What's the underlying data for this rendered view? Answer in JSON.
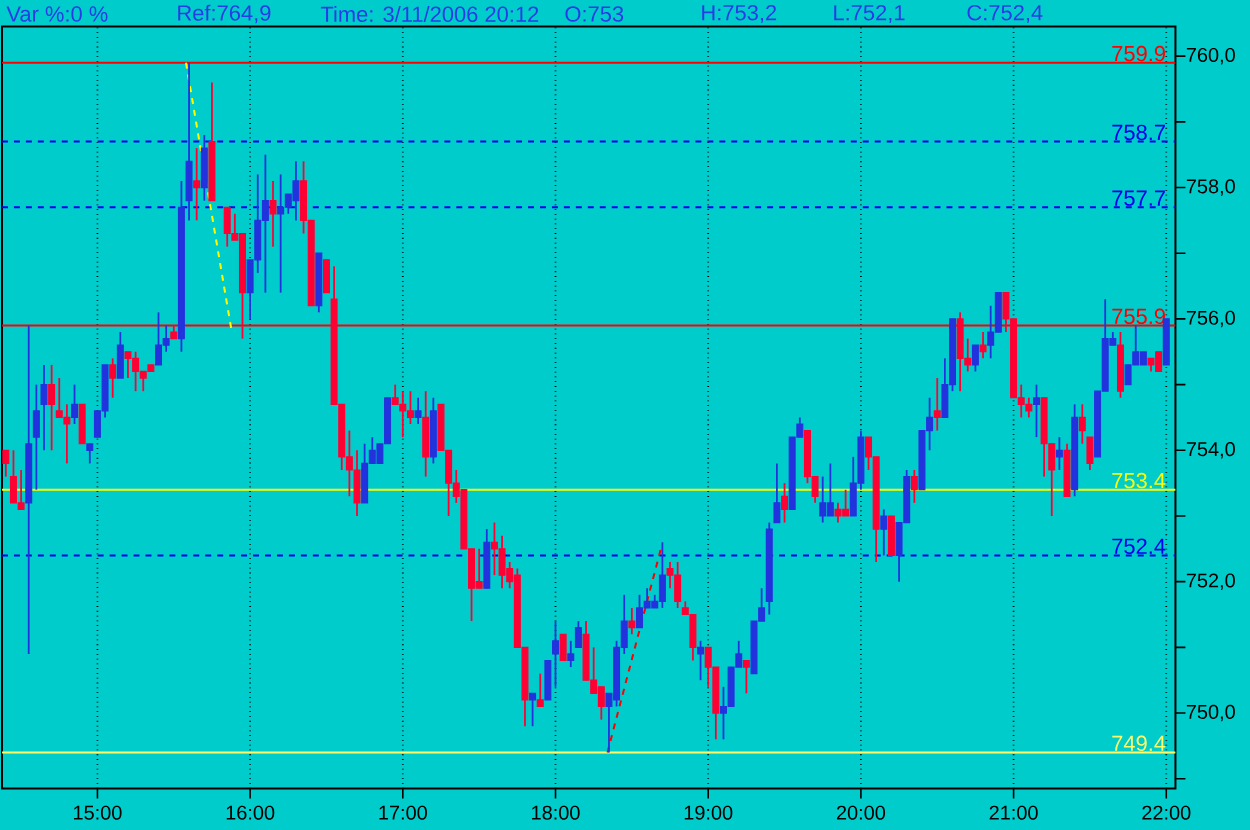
{
  "chart_data": {
    "type": "candlestick",
    "annotations": [
      "Var %:0 %",
      "Ref:764,9",
      "Time: 3/11/2006 20:12",
      "O:753",
      "H:753,2",
      "L:752,1",
      "C:752,4"
    ],
    "x": [
      14.4,
      14.45,
      14.5,
      14.55,
      14.6,
      14.65,
      14.7,
      14.75,
      14.8,
      14.85,
      14.9,
      14.95,
      15,
      15.05,
      15.1,
      15.15,
      15.2,
      15.25,
      15.3,
      15.35,
      15.4,
      15.45,
      15.5,
      15.55,
      15.6,
      15.65,
      15.7,
      15.75,
      15.85,
      15.9,
      15.95,
      16,
      16.05,
      16.1,
      16.15,
      16.2,
      16.25,
      16.3,
      16.35,
      16.4,
      16.45,
      16.5,
      16.55,
      16.6,
      16.65,
      16.7,
      16.75,
      16.8,
      16.85,
      16.9,
      16.95,
      17,
      17.05,
      17.1,
      17.15,
      17.2,
      17.25,
      17.3,
      17.35,
      17.4,
      17.45,
      17.5,
      17.55,
      17.6,
      17.65,
      17.7,
      17.75,
      17.8,
      17.85,
      17.9,
      17.95,
      18,
      18.05,
      18.1,
      18.15,
      18.2,
      18.25,
      18.3,
      18.35,
      18.4,
      18.45,
      18.5,
      18.55,
      18.6,
      18.65,
      18.7,
      18.75,
      18.8,
      18.85,
      18.9,
      18.95,
      19,
      19.05,
      19.1,
      19.15,
      19.2,
      19.25,
      19.3,
      19.35,
      19.4,
      19.45,
      19.5,
      19.55,
      19.6,
      19.65,
      19.7,
      19.75,
      19.8,
      19.85,
      19.9,
      19.95,
      20,
      20.05,
      20.1,
      20.15,
      20.2,
      20.25,
      20.3,
      20.35,
      20.4,
      20.45,
      20.5,
      20.55,
      20.6,
      20.65,
      20.7,
      20.75,
      20.8,
      20.85,
      20.9,
      20.95,
      21,
      21.05,
      21.1,
      21.15,
      21.2,
      21.25,
      21.3,
      21.35,
      21.4,
      21.45,
      21.5,
      21.55,
      21.6,
      21.65,
      21.7,
      21.75,
      21.8,
      21.85,
      21.9,
      21.95,
      22
    ],
    "ohlc": [
      [
        754.0,
        754.0,
        753.6,
        753.8
      ],
      [
        753.6,
        754.0,
        753.2,
        753.2
      ],
      [
        753.2,
        753.7,
        753.1,
        753.1
      ],
      [
        753.2,
        755.9,
        750.9,
        754.1
      ],
      [
        754.2,
        755.0,
        753.4,
        754.6
      ],
      [
        754.7,
        755.3,
        754.0,
        755.0
      ],
      [
        755.0,
        755.3,
        754.0,
        754.7
      ],
      [
        754.6,
        755.1,
        754.5,
        754.5
      ],
      [
        754.5,
        754.7,
        753.8,
        754.4
      ],
      [
        754.5,
        755.0,
        754.4,
        754.7
      ],
      [
        754.7,
        754.7,
        754.1,
        754.1
      ],
      [
        754.0,
        754.1,
        753.8,
        754.1
      ],
      [
        754.2,
        754.6,
        754.2,
        754.6
      ],
      [
        754.6,
        755.3,
        754.5,
        755.3
      ],
      [
        755.3,
        755.4,
        754.8,
        755.1
      ],
      [
        755.1,
        755.8,
        755.1,
        755.6
      ],
      [
        755.5,
        755.5,
        755.1,
        755.4
      ],
      [
        755.4,
        755.5,
        754.9,
        755.2
      ],
      [
        755.2,
        755.2,
        754.9,
        755.1
      ],
      [
        755.3,
        755.3,
        755.2,
        755.2
      ],
      [
        755.3,
        756.1,
        755.3,
        755.6
      ],
      [
        755.6,
        755.9,
        755.5,
        755.7
      ],
      [
        755.8,
        755.9,
        755.7,
        755.7
      ],
      [
        755.7,
        758.1,
        755.5,
        757.7
      ],
      [
        757.8,
        759.9,
        757.5,
        758.4
      ],
      [
        758.1,
        758.6,
        757.5,
        758.0
      ],
      [
        758.0,
        758.8,
        757.8,
        758.6
      ],
      [
        758.7,
        759.6,
        757.8,
        757.8
      ],
      [
        757.7,
        757.7,
        757.1,
        757.3
      ],
      [
        757.3,
        757.6,
        757.2,
        757.2
      ],
      [
        757.3,
        757.3,
        755.7,
        756.4
      ],
      [
        756.4,
        756.9,
        756.0,
        756.9
      ],
      [
        756.9,
        758.2,
        756.7,
        757.5
      ],
      [
        757.5,
        758.5,
        756.4,
        757.8
      ],
      [
        757.8,
        758.1,
        757.1,
        757.6
      ],
      [
        757.6,
        758.2,
        756.4,
        757.7
      ],
      [
        757.7,
        757.9,
        757.6,
        757.9
      ],
      [
        757.8,
        758.4,
        757.5,
        758.1
      ],
      [
        758.1,
        758.4,
        757.3,
        757.5
      ],
      [
        757.5,
        757.5,
        756.2,
        756.2
      ],
      [
        756.2,
        757.0,
        756.1,
        757.0
      ],
      [
        756.9,
        756.9,
        756.4,
        756.4
      ],
      [
        756.3,
        756.8,
        754.7,
        754.7
      ],
      [
        754.7,
        754.7,
        753.7,
        753.9
      ],
      [
        753.9,
        754.3,
        753.3,
        753.7
      ],
      [
        753.7,
        754.0,
        753.0,
        753.2
      ],
      [
        753.2,
        754.1,
        753.2,
        753.8
      ],
      [
        753.8,
        754.2,
        753.8,
        754.0
      ],
      [
        753.8,
        754.1,
        753.8,
        754.1
      ],
      [
        754.1,
        754.8,
        754.1,
        754.8
      ],
      [
        754.8,
        755.0,
        754.7,
        754.7
      ],
      [
        754.7,
        754.9,
        754.2,
        754.6
      ],
      [
        754.6,
        754.9,
        754.4,
        754.5
      ],
      [
        754.5,
        754.8,
        754.4,
        754.6
      ],
      [
        754.5,
        754.9,
        753.6,
        753.9
      ],
      [
        753.9,
        754.8,
        753.8,
        754.6
      ],
      [
        754.7,
        754.7,
        754.0,
        754.0
      ],
      [
        754.0,
        754.0,
        753.0,
        753.5
      ],
      [
        753.5,
        753.7,
        753.2,
        753.3
      ],
      [
        753.4,
        753.4,
        752.5,
        752.5
      ],
      [
        752.5,
        752.5,
        751.4,
        751.9
      ],
      [
        752.0,
        752.5,
        751.9,
        751.9
      ],
      [
        751.9,
        752.8,
        751.9,
        752.6
      ],
      [
        752.6,
        752.9,
        752.1,
        752.5
      ],
      [
        752.5,
        752.7,
        751.9,
        752.1
      ],
      [
        752.2,
        752.3,
        751.9,
        752.0
      ],
      [
        752.1,
        752.2,
        751.0,
        751.0
      ],
      [
        751.0,
        751.0,
        749.8,
        750.2
      ],
      [
        750.2,
        750.3,
        749.8,
        750.3
      ],
      [
        750.2,
        750.6,
        750.1,
        750.1
      ],
      [
        750.2,
        750.8,
        750.2,
        750.8
      ],
      [
        750.9,
        751.4,
        750.4,
        751.1
      ],
      [
        751.2,
        751.2,
        750.8,
        750.8
      ],
      [
        750.8,
        751.1,
        750.7,
        750.9
      ],
      [
        751.0,
        751.4,
        751.0,
        751.3
      ],
      [
        751.2,
        751.4,
        750.5,
        750.5
      ],
      [
        750.5,
        751.0,
        750.3,
        750.3
      ],
      [
        750.4,
        750.4,
        749.9,
        750.1
      ],
      [
        750.1,
        750.3,
        749.4,
        750.3
      ],
      [
        750.2,
        751.1,
        750.1,
        751.0
      ],
      [
        751.0,
        751.8,
        750.9,
        751.4
      ],
      [
        751.4,
        751.6,
        751.2,
        751.3
      ],
      [
        751.3,
        751.8,
        751.3,
        751.6
      ],
      [
        751.6,
        751.9,
        751.6,
        751.7
      ],
      [
        751.6,
        751.8,
        751.6,
        751.7
      ],
      [
        751.7,
        752.6,
        751.6,
        752.1
      ],
      [
        752.2,
        752.3,
        751.9,
        752.1
      ],
      [
        752.1,
        752.3,
        751.6,
        751.7
      ],
      [
        751.6,
        751.7,
        751.5,
        751.5
      ],
      [
        751.5,
        751.5,
        750.8,
        751.0
      ],
      [
        750.9,
        751.1,
        750.5,
        751.0
      ],
      [
        751.0,
        751.0,
        750.4,
        750.7
      ],
      [
        750.7,
        750.7,
        749.6,
        750.0
      ],
      [
        750.0,
        750.4,
        749.6,
        750.1
      ],
      [
        750.1,
        750.7,
        750.1,
        750.7
      ],
      [
        750.7,
        751.1,
        750.7,
        750.9
      ],
      [
        750.8,
        750.8,
        750.3,
        750.7
      ],
      [
        750.6,
        751.4,
        750.6,
        751.4
      ],
      [
        751.4,
        751.9,
        751.4,
        751.6
      ],
      [
        751.7,
        752.9,
        751.5,
        752.8
      ],
      [
        752.9,
        753.8,
        752.9,
        753.2
      ],
      [
        753.3,
        753.5,
        752.9,
        753.1
      ],
      [
        753.1,
        754.2,
        753.1,
        754.2
      ],
      [
        754.2,
        754.5,
        754.2,
        754.4
      ],
      [
        754.3,
        754.3,
        753.5,
        753.6
      ],
      [
        753.6,
        753.6,
        753.2,
        753.3
      ],
      [
        753.0,
        753.6,
        752.9,
        753.2
      ],
      [
        753.0,
        753.8,
        753.0,
        753.2
      ],
      [
        753.1,
        753.2,
        752.9,
        753.0
      ],
      [
        753.1,
        753.4,
        753.0,
        753.0
      ],
      [
        753.0,
        753.9,
        753.0,
        753.5
      ],
      [
        753.5,
        754.3,
        753.4,
        754.2
      ],
      [
        754.2,
        754.2,
        753.7,
        753.9
      ],
      [
        753.9,
        753.9,
        752.3,
        752.8
      ],
      [
        752.8,
        753.1,
        752.4,
        753.0
      ],
      [
        753.0,
        753.0,
        752.4,
        752.4
      ],
      [
        752.4,
        752.9,
        752.0,
        752.9
      ],
      [
        752.9,
        753.7,
        752.9,
        753.6
      ],
      [
        753.6,
        753.7,
        753.2,
        753.4
      ],
      [
        753.4,
        754.3,
        753.4,
        754.3
      ],
      [
        754.3,
        754.8,
        754.0,
        754.5
      ],
      [
        754.6,
        755.1,
        754.3,
        754.5
      ],
      [
        754.5,
        755.4,
        754.5,
        755.0
      ],
      [
        755.0,
        756.0,
        754.9,
        756.0
      ],
      [
        756.0,
        756.1,
        754.9,
        755.4
      ],
      [
        755.4,
        755.7,
        755.2,
        755.3
      ],
      [
        755.3,
        755.6,
        755.2,
        755.6
      ],
      [
        755.6,
        755.8,
        755.4,
        755.5
      ],
      [
        755.6,
        756.2,
        755.4,
        755.8
      ],
      [
        755.8,
        756.4,
        755.8,
        756.4
      ],
      [
        756.4,
        756.4,
        755.8,
        756.0
      ],
      [
        756.0,
        756.0,
        754.8,
        754.8
      ],
      [
        754.8,
        755.0,
        754.5,
        754.7
      ],
      [
        754.7,
        754.8,
        754.5,
        754.6
      ],
      [
        754.7,
        755.0,
        754.2,
        754.8
      ],
      [
        754.8,
        754.8,
        753.6,
        754.1
      ],
      [
        754.1,
        754.1,
        753.0,
        753.7
      ],
      [
        753.9,
        754.2,
        753.7,
        754.0
      ],
      [
        754.0,
        754.1,
        753.3,
        753.3
      ],
      [
        753.4,
        754.7,
        753.3,
        754.5
      ],
      [
        754.5,
        754.7,
        754.1,
        754.3
      ],
      [
        754.2,
        754.2,
        753.7,
        753.8
      ],
      [
        753.9,
        754.9,
        753.9,
        754.9
      ],
      [
        754.9,
        756.3,
        754.9,
        755.7
      ],
      [
        755.6,
        755.8,
        755.6,
        755.7
      ],
      [
        755.6,
        755.8,
        754.8,
        754.9
      ],
      [
        755.0,
        755.3,
        755.0,
        755.3
      ],
      [
        755.3,
        755.9,
        755.3,
        755.5
      ],
      [
        755.3,
        755.5,
        755.3,
        755.5
      ],
      [
        755.4,
        755.4,
        755.2,
        755.3
      ],
      [
        755.5,
        755.5,
        755.2,
        755.2
      ],
      [
        755.3,
        756.0,
        755.3,
        756.0
      ]
    ],
    "colors": [
      "#ff0033",
      "#ff0033",
      "#ff0033",
      "#2233dd",
      "#2233dd",
      "#2233dd",
      "#ff0033",
      "#ff0033",
      "#ff0033",
      "#2233dd",
      "#ff0033",
      "#2233dd",
      "#2233dd",
      "#2233dd",
      "#ff0033",
      "#2233dd",
      "#ff0033",
      "#ff0033",
      "#ff0033",
      "#ff0033",
      "#2233dd",
      "#2233dd",
      "#ff0033",
      "#2233dd",
      "#2233dd",
      "#ff0033",
      "#2233dd",
      "#ff0033",
      "#ff0033",
      "#ff0033",
      "#ff0033",
      "#2233dd",
      "#2233dd",
      "#2233dd",
      "#ff0033",
      "#2233dd",
      "#2233dd",
      "#2233dd",
      "#ff0033",
      "#ff0033",
      "#2233dd",
      "#ff0033",
      "#ff0033",
      "#ff0033",
      "#ff0033",
      "#ff0033",
      "#2233dd",
      "#2233dd",
      "#2233dd",
      "#2233dd",
      "#ff0033",
      "#ff0033",
      "#ff0033",
      "#2233dd",
      "#ff0033",
      "#2233dd",
      "#ff0033",
      "#ff0033",
      "#ff0033",
      "#ff0033",
      "#ff0033",
      "#ff0033",
      "#2233dd",
      "#ff0033",
      "#ff0033",
      "#ff0033",
      "#ff0033",
      "#ff0033",
      "#2233dd",
      "#ff0033",
      "#2233dd",
      "#2233dd",
      "#ff0033",
      "#2233dd",
      "#2233dd",
      "#ff0033",
      "#ff0033",
      "#ff0033",
      "#2233dd",
      "#2233dd",
      "#2233dd",
      "#ff0033",
      "#2233dd",
      "#2233dd",
      "#2233dd",
      "#2233dd",
      "#ff0033",
      "#ff0033",
      "#ff0033",
      "#ff0033",
      "#2233dd",
      "#ff0033",
      "#ff0033",
      "#2233dd",
      "#2233dd",
      "#2233dd",
      "#ff0033",
      "#2233dd",
      "#2233dd",
      "#2233dd",
      "#2233dd",
      "#ff0033",
      "#2233dd",
      "#2233dd",
      "#ff0033",
      "#ff0033",
      "#2233dd",
      "#2233dd",
      "#ff0033",
      "#ff0033",
      "#2233dd",
      "#2233dd",
      "#ff0033",
      "#ff0033",
      "#2233dd",
      "#ff0033",
      "#2233dd",
      "#2233dd",
      "#ff0033",
      "#2233dd",
      "#2233dd",
      "#ff0033",
      "#2233dd",
      "#2233dd",
      "#ff0033",
      "#ff0033",
      "#2233dd",
      "#ff0033",
      "#2233dd",
      "#2233dd",
      "#ff0033",
      "#ff0033",
      "#ff0033",
      "#ff0033",
      "#2233dd",
      "#ff0033",
      "#ff0033",
      "#2233dd",
      "#ff0033",
      "#2233dd",
      "#ff0033",
      "#ff0033",
      "#2233dd",
      "#2233dd",
      "#2233dd",
      "#ff0033",
      "#2233dd",
      "#2233dd",
      "#2233dd",
      "#ff0033",
      "#ff0033",
      "#2233dd"
    ],
    "series": [
      {
        "type": "line",
        "x": [
          15.58,
          15.88
        ],
        "values": [
          759.9,
          755.8
        ],
        "color": "#ffff00",
        "line_style": "dashed"
      },
      {
        "type": "line",
        "x": [
          18.34,
          18.69
        ],
        "values": [
          749.4,
          752.5
        ],
        "color": "#ff0000",
        "line_style": "dashed"
      }
    ],
    "ref_lines": [
      {
        "axis": "y",
        "value": 759.9,
        "label": "759.9",
        "color": "#ff0000",
        "line_style": "solid"
      },
      {
        "axis": "y",
        "value": 758.7,
        "label": "758.7",
        "color": "#0000ee",
        "line_style": "dashed"
      },
      {
        "axis": "y",
        "value": 757.7,
        "label": "757.7",
        "color": "#0000ee",
        "line_style": "dashed"
      },
      {
        "axis": "y",
        "value": 755.9,
        "label": "755.9",
        "color": "#ff0000",
        "line_style": "solid"
      },
      {
        "axis": "y",
        "value": 753.4,
        "label": "753.4",
        "color": "#ffff00",
        "line_style": "solid"
      },
      {
        "axis": "y",
        "value": 752.4,
        "label": "752.4",
        "color": "#0000ee",
        "line_style": "dashed"
      },
      {
        "axis": "y",
        "value": 749.4,
        "label": "749.4",
        "color": "#ffff66",
        "line_style": "solid"
      }
    ],
    "xlim": [
      14.375,
      22.06
    ],
    "xticks": [
      {
        "value": 15,
        "label": "15:00"
      },
      {
        "value": 16,
        "label": "16:00"
      },
      {
        "value": 17,
        "label": "17:00"
      },
      {
        "value": 18,
        "label": "18:00"
      },
      {
        "value": 19,
        "label": "19:00"
      },
      {
        "value": 20,
        "label": "20:00"
      },
      {
        "value": 21,
        "label": "21:00"
      },
      {
        "value": 22,
        "label": "22:00"
      }
    ],
    "ylim": [
      748.85,
      760.45
    ],
    "yticks": [
      {
        "value": 749,
        "label": null
      },
      {
        "value": 750,
        "label": "750,0"
      },
      {
        "value": 751,
        "label": null
      },
      {
        "value": 752,
        "label": "752,0"
      },
      {
        "value": 753,
        "label": null
      },
      {
        "value": 754,
        "label": "754,0"
      },
      {
        "value": 755,
        "label": null
      },
      {
        "value": 756,
        "label": "756,0"
      },
      {
        "value": 757,
        "label": null
      },
      {
        "value": 758,
        "label": "758,0"
      },
      {
        "value": 759,
        "label": null
      },
      {
        "value": 760,
        "label": "760,0"
      }
    ],
    "grid": "x"
  }
}
